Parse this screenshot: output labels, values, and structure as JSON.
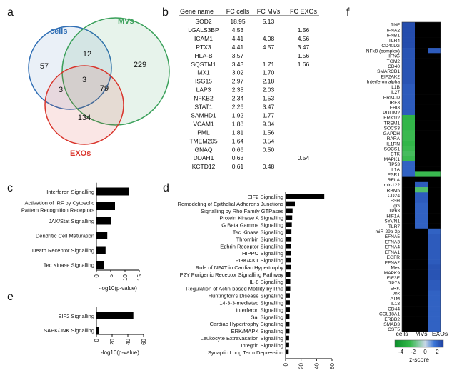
{
  "panel_labels": [
    "a",
    "b",
    "c",
    "d",
    "e",
    "f"
  ],
  "chart_data": [
    {
      "panel": "a",
      "type": "venn",
      "sets": [
        {
          "name": "cells",
          "color": "#2e6db4"
        },
        {
          "name": "MVs",
          "color": "#3aa05a"
        },
        {
          "name": "EXOs",
          "color": "#d9342b"
        }
      ],
      "regions": [
        {
          "sets": [
            "cells"
          ],
          "value": 57
        },
        {
          "sets": [
            "MVs"
          ],
          "value": 229
        },
        {
          "sets": [
            "EXOs"
          ],
          "value": 134
        },
        {
          "sets": [
            "cells",
            "MVs"
          ],
          "value": 12
        },
        {
          "sets": [
            "cells",
            "EXOs"
          ],
          "value": 3
        },
        {
          "sets": [
            "MVs",
            "EXOs"
          ],
          "value": 79
        },
        {
          "sets": [
            "cells",
            "MVs",
            "EXOs"
          ],
          "value": 3
        }
      ]
    },
    {
      "panel": "b",
      "type": "table",
      "columns": [
        "Gene name",
        "FC cells",
        "FC MVs",
        "FC EXOs"
      ],
      "rows": [
        [
          "SOD2",
          "18.95",
          "5.13",
          ""
        ],
        [
          "LGALS3BP",
          "4.53",
          "",
          "1.56"
        ],
        [
          "ICAM1",
          "4.41",
          "4.08",
          "4.56"
        ],
        [
          "PTX3",
          "4.41",
          "4.57",
          "3.47"
        ],
        [
          "HLA-B",
          "3.57",
          "",
          "1.56"
        ],
        [
          "SQSTM1",
          "3.43",
          "1.71",
          "1.66"
        ],
        [
          "MX1",
          "3.02",
          "1.70",
          ""
        ],
        [
          "ISG15",
          "2.97",
          "2.18",
          ""
        ],
        [
          "LAP3",
          "2.35",
          "2.03",
          ""
        ],
        [
          "NFKB2",
          "2.34",
          "1.53",
          ""
        ],
        [
          "STAT1",
          "2.26",
          "3.47",
          ""
        ],
        [
          "SAMHD1",
          "1.92",
          "1.77",
          ""
        ],
        [
          "VCAM1",
          "1.88",
          "9.04",
          ""
        ],
        [
          "PML",
          "1.81",
          "1.56",
          ""
        ],
        [
          "TMEM205",
          "1.64",
          "0.54",
          ""
        ],
        [
          "GNAQ",
          "0.66",
          "0.50",
          ""
        ],
        [
          "DDAH1",
          "0.63",
          "",
          "0.54"
        ],
        [
          "KCTD12",
          "0.61",
          "0.48",
          ""
        ]
      ]
    },
    {
      "panel": "c",
      "type": "bar",
      "orientation": "horizontal",
      "categories": [
        "Interferon Signalling",
        "Activation of IRF by Cytosolic Pattern Recognition Receptors",
        "JAK/Stat Signalling",
        "Dendritic Cell Maturation",
        "Death Receptor Signalling",
        "Tec Kinase Signalling"
      ],
      "category_lines": [
        [
          "Interferon Signalling"
        ],
        [
          "Activation of IRF by Cytosolic",
          "Pattern Recognition Receptors"
        ],
        [
          "JAK/Stat Signalling"
        ],
        [
          "Dendritic Cell Maturation"
        ],
        [
          "Death Receptor Signalling"
        ],
        [
          "Tec Kinase Signalling"
        ]
      ],
      "values": [
        11.5,
        6.5,
        5.0,
        3.8,
        3.2,
        2.6
      ],
      "xlim": [
        0,
        15
      ],
      "xticks": [
        0,
        5,
        10,
        15
      ],
      "xlabel": "-log10(p-value)",
      "bar_color": "#000000"
    },
    {
      "panel": "d",
      "type": "bar",
      "orientation": "horizontal",
      "categories": [
        "EIF2 Signalling",
        "Remodeling of Epithelial Adherens Junctions",
        "Signalling by Rho Family GTPases",
        "Protein Kinase A Signalling",
        "G Beta Gamma Signalling",
        "Tec Kinase Signalling",
        "Thrombin Signalling",
        "Ephrin Receptor Signalling",
        "HIPPO Signalling",
        "PI3K/AKT Signalling",
        "Role of NFAT in Cardiac Hypertrophy",
        "P2Y Purigenic Receptor Signalling Pathway",
        "IL-8 Signalling",
        "Regulation of Actin-based Motility by Rho",
        "Huntington's Disease Signalling",
        "14-3-3-mediated Signalling",
        "Interferon Signalling",
        "Gai Signalling",
        "Cardiac Hypertrophy Signalling",
        "ERK/MAPK Signalling",
        "Leukocyte Extravasation Signalling",
        "Integrin Signalling",
        "Synaptic Long Term Depression"
      ],
      "values": [
        50,
        12,
        9,
        8.5,
        8,
        7.5,
        7.5,
        7,
        7,
        6.5,
        6.5,
        6,
        6,
        6,
        5.5,
        5.5,
        5.5,
        5,
        5,
        5,
        4.5,
        4.5,
        4
      ],
      "xlim": [
        0,
        60
      ],
      "xticks": [
        0,
        20,
        40,
        60
      ],
      "xlabel": "-log10(p-value)",
      "bar_color": "#000000"
    },
    {
      "panel": "e",
      "type": "bar",
      "orientation": "horizontal",
      "categories": [
        "EIF2 Signalling",
        "SAPK/JNK Signalling"
      ],
      "values": [
        47,
        3
      ],
      "xlim": [
        0,
        60
      ],
      "xticks": [
        0,
        20,
        40,
        60
      ],
      "xlabel": "-log10(p-value)",
      "bar_color": "#000000"
    },
    {
      "panel": "f",
      "type": "heatmap",
      "rows": [
        "TNF",
        "IFNA2",
        "IFNB1",
        "TLR4",
        "CD40LG",
        "NFkB (complex)",
        "IFNG",
        "TGM2",
        "CD40",
        "SMARCB1",
        "EIF2AK2",
        "Interferon alpha",
        "IL1B",
        "IL27",
        "PRKCD",
        "IRF3",
        "EBI3",
        "PDLIM2",
        "ERK1/2",
        "TREM1",
        "SOCS3",
        "GAPDH",
        "RARA",
        "IL1RN",
        "SOCS1",
        "BTK",
        "MAPK1",
        "TP53",
        "IL1A",
        "ESR1",
        "RELA",
        "mir-122",
        "RBM5",
        "CD24",
        "FSH",
        "IgG",
        "TP63",
        "HIF1A",
        "SYVN1",
        "TLR7",
        "miR-29b-3p",
        "EFNA5",
        "EFNA3",
        "EFNA4",
        "EFNA1",
        "EGFR",
        "EFNA2",
        "Mek",
        "MAPK9",
        "EIF3E",
        "TP73",
        "ERK",
        "Jnk",
        "ATM",
        "IL13",
        "CD44",
        "COL18A1",
        "ERBB2",
        "SMAD3",
        "CST5"
      ],
      "columns": [
        "cells",
        "MVs",
        "EXOs"
      ],
      "values": [
        [
          2.6,
          -9,
          -9
        ],
        [
          2.6,
          -9,
          -9
        ],
        [
          2.6,
          -9,
          -9
        ],
        [
          2.6,
          -9,
          -9
        ],
        [
          2.6,
          -9,
          -9
        ],
        [
          2.4,
          -9,
          2.2
        ],
        [
          2.4,
          -9,
          -9
        ],
        [
          2.4,
          -9,
          -9
        ],
        [
          2.4,
          -9,
          -9
        ],
        [
          2.4,
          -9,
          -9
        ],
        [
          2.4,
          -9,
          -9
        ],
        [
          2.4,
          -9,
          -9
        ],
        [
          2.2,
          -9,
          -9
        ],
        [
          2.2,
          -9,
          -9
        ],
        [
          2.2,
          -9,
          -9
        ],
        [
          2.2,
          -9,
          -9
        ],
        [
          2.2,
          -9,
          -9
        ],
        [
          2.2,
          -9,
          -9
        ],
        [
          -2.8,
          -9,
          -9
        ],
        [
          -2.6,
          -9,
          -9
        ],
        [
          -2.6,
          -9,
          -9
        ],
        [
          -2.4,
          -9,
          -9
        ],
        [
          -2.4,
          -9,
          -9
        ],
        [
          -2.6,
          -9,
          -9
        ],
        [
          -2.4,
          -9,
          -9
        ],
        [
          -2.2,
          -9,
          -9
        ],
        [
          -2.4,
          -9,
          -9
        ],
        [
          2.0,
          -9,
          -9
        ],
        [
          2.0,
          -9,
          -9
        ],
        [
          2.0,
          -2.4,
          -2.4
        ],
        [
          -9,
          -9,
          -9
        ],
        [
          -9,
          2.2,
          -9
        ],
        [
          -9,
          -2.0,
          -9
        ],
        [
          -9,
          2.2,
          -9
        ],
        [
          -9,
          2.2,
          -9
        ],
        [
          -9,
          2.0,
          -9
        ],
        [
          -9,
          2.0,
          -9
        ],
        [
          -9,
          2.0,
          -9
        ],
        [
          -9,
          2.0,
          -9
        ],
        [
          -9,
          2.0,
          -9
        ],
        [
          -9,
          -9,
          2.0
        ],
        [
          -9,
          -9,
          2.2
        ],
        [
          -9,
          -9,
          2.2
        ],
        [
          -9,
          -9,
          2.2
        ],
        [
          -9,
          -9,
          2.2
        ],
        [
          -9,
          -9,
          2.2
        ],
        [
          -9,
          -9,
          2.2
        ],
        [
          -9,
          -9,
          2.4
        ],
        [
          -9,
          -9,
          2.4
        ],
        [
          -9,
          -9,
          2.4
        ],
        [
          -9,
          -9,
          2.2
        ],
        [
          -9,
          -9,
          2.2
        ],
        [
          -9,
          -9,
          2.0
        ],
        [
          -9,
          -9,
          2.0
        ],
        [
          -9,
          -9,
          2.0
        ],
        [
          -9,
          -9,
          2.0
        ],
        [
          -9,
          -9,
          2.0
        ],
        [
          -9,
          -9,
          2.0
        ],
        [
          -9,
          -9,
          2.0
        ],
        [
          -9,
          -9,
          2.0
        ]
      ],
      "no_data_value": -9,
      "no_data_color": "#000000",
      "colorbar": {
        "ticks": [
          "-4",
          "-2",
          "0",
          "2"
        ],
        "tick_values": [
          -4,
          -2,
          0,
          2
        ],
        "range": [
          -5,
          3
        ],
        "label": "z-score",
        "stops": [
          {
            "value": -5,
            "color": "#0a8f2a"
          },
          {
            "value": -2.5,
            "color": "#34b84a"
          },
          {
            "value": 0,
            "color": "#c8d8e6"
          },
          {
            "value": 1.5,
            "color": "#3a74d6"
          },
          {
            "value": 3,
            "color": "#1e3f9e"
          }
        ]
      }
    }
  ]
}
